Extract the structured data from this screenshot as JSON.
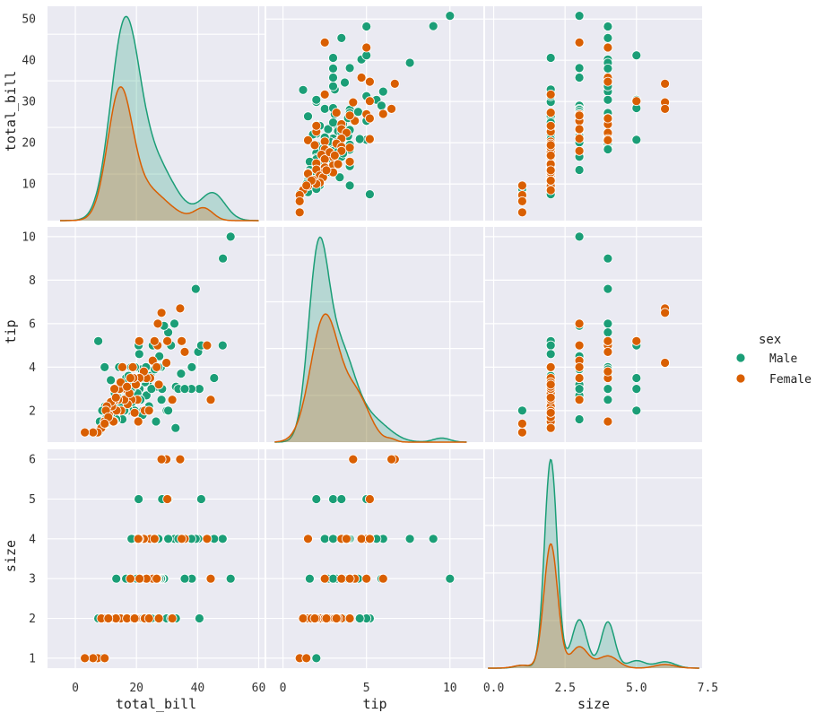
{
  "chart_data": {
    "type": "pairplot",
    "title": "",
    "variables": [
      "total_bill",
      "tip",
      "size"
    ],
    "legend": {
      "title": "sex",
      "placement": "right",
      "entries": [
        {
          "name": "Male",
          "color": "#1b9e77"
        },
        {
          "name": "Female",
          "color": "#d95f02"
        }
      ]
    },
    "axes": {
      "total_bill": {
        "range": [
          -9.1,
          61.9
        ],
        "ticks": [
          0,
          20,
          40,
          60
        ],
        "tick_labels": [
          "0",
          "20",
          "40",
          "60"
        ],
        "label": "total_bill",
        "row_range": [
          1.1,
          53.1
        ],
        "row_ticks": [
          10,
          20,
          30,
          40,
          50
        ],
        "row_tick_labels": [
          "10",
          "20",
          "30",
          "40",
          "50"
        ]
      },
      "tip": {
        "range": [
          -1.0,
          12.0
        ],
        "ticks": [
          0,
          5,
          10
        ],
        "tick_labels": [
          "0",
          "5",
          "10"
        ],
        "label": "tip",
        "row_range": [
          0.55,
          10.45
        ],
        "row_ticks": [
          2,
          4,
          6,
          8,
          10
        ],
        "row_tick_labels": [
          "2",
          "4",
          "6",
          "8",
          "10"
        ]
      },
      "size": {
        "range": [
          -0.3,
          7.3
        ],
        "ticks": [
          0.0,
          2.5,
          5.0,
          7.5
        ],
        "tick_labels": [
          "0.0",
          "2.5",
          "5.0",
          "7.5"
        ],
        "label": "size",
        "row_range": [
          0.75,
          6.25
        ],
        "row_ticks": [
          1,
          2,
          3,
          4,
          5,
          6
        ],
        "row_tick_labels": [
          "1",
          "2",
          "3",
          "4",
          "5",
          "6"
        ]
      }
    },
    "kde": {
      "total_bill": {
        "x_range": [
          -5,
          60
        ],
        "Male": {
          "peak_density": 0.0435,
          "components": [
            {
              "mu": 16.0,
              "sd": 4.6,
              "w": 0.6
            },
            {
              "mu": 25.0,
              "sd": 7.0,
              "w": 0.32
            },
            {
              "mu": 45.0,
              "sd": 4.0,
              "w": 0.08
            }
          ]
        },
        "Female": {
          "peak_density": 0.0285,
          "components": [
            {
              "mu": 14.5,
              "sd": 4.0,
              "w": 0.65
            },
            {
              "mu": 23.0,
              "sd": 7.0,
              "w": 0.3
            },
            {
              "mu": 42.0,
              "sd": 3.0,
              "w": 0.05
            }
          ]
        }
      },
      "tip": {
        "x_range": [
          -0.5,
          11
        ],
        "Male": {
          "peak_density": 0.32,
          "components": [
            {
              "mu": 2.1,
              "sd": 0.6,
              "w": 0.5
            },
            {
              "mu": 3.4,
              "sd": 0.9,
              "w": 0.4
            },
            {
              "mu": 5.4,
              "sd": 1.0,
              "w": 0.1
            },
            {
              "mu": 9.5,
              "sd": 0.5,
              "w": 0.01
            }
          ]
        },
        "Female": {
          "peak_density": 0.2,
          "components": [
            {
              "mu": 2.5,
              "sd": 0.85,
              "w": 0.75
            },
            {
              "mu": 4.4,
              "sd": 0.8,
              "w": 0.25
            },
            {
              "mu": 6.5,
              "sd": 0.3,
              "w": 0.005
            }
          ]
        }
      },
      "size": {
        "x_range": [
          -0.2,
          7.2
        ],
        "Male": {
          "peak_density": 0.94,
          "components": [
            {
              "mu": 2.0,
              "sd": 0.22,
              "w": 0.62
            },
            {
              "mu": 3.0,
              "sd": 0.26,
              "w": 0.17
            },
            {
              "mu": 4.0,
              "sd": 0.24,
              "w": 0.15
            },
            {
              "mu": 5.0,
              "sd": 0.3,
              "w": 0.03
            },
            {
              "mu": 6.0,
              "sd": 0.35,
              "w": 0.03
            },
            {
              "mu": 1.0,
              "sd": 0.25,
              "w": 0.01
            }
          ]
        },
        "Female": {
          "peak_density": 0.56,
          "components": [
            {
              "mu": 2.0,
              "sd": 0.24,
              "w": 0.7
            },
            {
              "mu": 3.0,
              "sd": 0.3,
              "w": 0.15
            },
            {
              "mu": 4.0,
              "sd": 0.35,
              "w": 0.1
            },
            {
              "mu": 6.0,
              "sd": 0.35,
              "w": 0.03
            },
            {
              "mu": 1.0,
              "sd": 0.3,
              "w": 0.02
            }
          ]
        }
      }
    },
    "points": {
      "Male": [
        [
          50.8,
          10.0,
          3
        ],
        [
          48.3,
          9.0,
          4
        ],
        [
          48.2,
          5.0,
          4
        ],
        [
          45.4,
          3.5,
          4
        ],
        [
          44.3,
          2.5,
          3
        ],
        [
          43.1,
          5.0,
          4
        ],
        [
          40.6,
          3.0,
          2
        ],
        [
          40.2,
          4.7,
          4
        ],
        [
          39.4,
          7.6,
          4
        ],
        [
          38.1,
          4.0,
          3
        ],
        [
          38.0,
          3.0,
          4
        ],
        [
          34.8,
          5.2,
          4
        ],
        [
          34.6,
          3.7,
          4
        ],
        [
          34.3,
          6.7,
          6
        ],
        [
          32.4,
          6.0,
          4
        ],
        [
          32.8,
          1.2,
          2
        ],
        [
          32.9,
          3.1,
          2
        ],
        [
          30.4,
          5.6,
          4
        ],
        [
          29.9,
          2.0,
          2
        ],
        [
          29.8,
          4.2,
          6
        ],
        [
          29.0,
          5.9,
          3
        ],
        [
          28.2,
          2.5,
          3
        ],
        [
          28.0,
          4.0,
          3
        ],
        [
          27.2,
          4.0,
          4
        ],
        [
          26.9,
          3.1,
          3
        ],
        [
          26.4,
          1.5,
          2
        ],
        [
          25.9,
          5.2,
          4
        ],
        [
          25.6,
          4.3,
          3
        ],
        [
          25.3,
          5.0,
          2
        ],
        [
          24.6,
          3.6,
          4
        ],
        [
          24.3,
          2.0,
          2
        ],
        [
          24.1,
          2.2,
          2
        ],
        [
          23.7,
          3.3,
          2
        ],
        [
          23.3,
          2.7,
          3
        ],
        [
          22.8,
          3.3,
          2
        ],
        [
          22.5,
          3.5,
          2
        ],
        [
          22.2,
          2.0,
          2
        ],
        [
          21.6,
          3.9,
          3
        ],
        [
          21.0,
          3.0,
          3
        ],
        [
          20.7,
          5.0,
          2
        ],
        [
          20.6,
          3.4,
          2
        ],
        [
          20.3,
          2.8,
          2
        ],
        [
          20.1,
          3.2,
          3
        ],
        [
          19.8,
          3.2,
          2
        ],
        [
          19.5,
          4.0,
          4
        ],
        [
          19.4,
          2.0,
          2
        ],
        [
          18.7,
          4.0,
          4
        ],
        [
          18.4,
          3.0,
          4
        ],
        [
          18.3,
          4.0,
          2
        ],
        [
          18.0,
          3.0,
          2
        ],
        [
          17.8,
          3.3,
          2
        ],
        [
          17.5,
          2.0,
          2
        ],
        [
          17.3,
          2.7,
          2
        ],
        [
          17.0,
          3.5,
          3
        ],
        [
          16.6,
          3.5,
          3
        ],
        [
          16.3,
          2.0,
          2
        ],
        [
          16.0,
          2.0,
          2
        ],
        [
          15.7,
          3.0,
          2
        ],
        [
          15.4,
          1.6,
          2
        ],
        [
          15.0,
          2.2,
          2
        ],
        [
          14.8,
          3.2,
          2
        ],
        [
          14.5,
          2.0,
          2
        ],
        [
          14.3,
          4.0,
          2
        ],
        [
          14.0,
          3.0,
          2
        ],
        [
          13.8,
          2.0,
          2
        ],
        [
          13.4,
          1.6,
          3
        ],
        [
          13.0,
          2.0,
          2
        ],
        [
          12.7,
          1.5,
          2
        ],
        [
          12.5,
          2.2,
          2
        ],
        [
          12.0,
          1.9,
          2
        ],
        [
          11.6,
          3.4,
          2
        ],
        [
          11.2,
          2.0,
          2
        ],
        [
          10.8,
          1.5,
          2
        ],
        [
          10.3,
          1.7,
          2
        ],
        [
          10.0,
          1.4,
          2
        ],
        [
          9.6,
          4.0,
          2
        ],
        [
          9.0,
          2.0,
          2
        ],
        [
          8.5,
          1.3,
          2
        ],
        [
          8.0,
          1.5,
          2
        ],
        [
          7.6,
          1.0,
          1
        ],
        [
          7.5,
          5.2,
          2
        ],
        [
          12.2,
          1.5,
          2
        ],
        [
          22.0,
          1.8,
          2
        ],
        [
          15.5,
          3.0,
          2
        ],
        [
          27.5,
          4.5,
          3
        ],
        [
          21.3,
          2.5,
          4
        ],
        [
          13.9,
          2.6,
          2
        ],
        [
          24.9,
          3.0,
          2
        ],
        [
          16.8,
          2.4,
          2
        ],
        [
          12.9,
          2.8,
          2
        ],
        [
          31.3,
          5.0,
          2
        ],
        [
          33.7,
          3.0,
          4
        ],
        [
          26.0,
          3.9,
          4
        ],
        [
          20.9,
          4.6,
          2
        ],
        [
          35.8,
          3.0,
          3
        ],
        [
          41.2,
          5.0,
          5
        ],
        [
          30.4,
          2.0,
          5
        ],
        [
          28.4,
          3.0,
          5
        ],
        [
          20.7,
          3.5,
          5
        ],
        [
          9.7,
          2.2,
          2
        ],
        [
          8.8,
          2.0,
          1
        ],
        [
          18.6,
          2.4,
          2
        ],
        [
          23.1,
          4.0,
          3
        ],
        [
          17.4,
          3.6,
          2
        ]
      ],
      "Female": [
        [
          44.3,
          2.5,
          3
        ],
        [
          43.1,
          5.0,
          4
        ],
        [
          35.8,
          4.7,
          4
        ],
        [
          34.8,
          5.2,
          4
        ],
        [
          34.3,
          6.7,
          6
        ],
        [
          30.1,
          5.2,
          5
        ],
        [
          29.8,
          4.2,
          6
        ],
        [
          28.2,
          6.5,
          6
        ],
        [
          27.0,
          6.0,
          3
        ],
        [
          26.9,
          5.0,
          3
        ],
        [
          25.3,
          4.3,
          3
        ],
        [
          24.5,
          3.5,
          4
        ],
        [
          23.3,
          3.5,
          3
        ],
        [
          22.4,
          3.8,
          4
        ],
        [
          21.0,
          3.5,
          3
        ],
        [
          20.9,
          5.2,
          4
        ],
        [
          20.3,
          2.5,
          2
        ],
        [
          19.8,
          3.2,
          2
        ],
        [
          19.0,
          3.5,
          2
        ],
        [
          18.4,
          2.5,
          2
        ],
        [
          18.0,
          3.5,
          3
        ],
        [
          17.1,
          2.3,
          2
        ],
        [
          16.5,
          3.0,
          2
        ],
        [
          16.0,
          2.5,
          2
        ],
        [
          15.4,
          4.0,
          2
        ],
        [
          15.0,
          2.0,
          2
        ],
        [
          14.5,
          3.0,
          2
        ],
        [
          14.0,
          2.5,
          2
        ],
        [
          13.5,
          2.0,
          2
        ],
        [
          13.0,
          2.5,
          2
        ],
        [
          12.5,
          1.5,
          2
        ],
        [
          12.0,
          2.2,
          2
        ],
        [
          11.6,
          2.4,
          2
        ],
        [
          11.0,
          1.8,
          2
        ],
        [
          10.3,
          2.2,
          2
        ],
        [
          10.0,
          2.0,
          2
        ],
        [
          9.5,
          1.5,
          2
        ],
        [
          8.5,
          1.2,
          2
        ],
        [
          7.3,
          1.0,
          1
        ],
        [
          5.8,
          1.0,
          1
        ],
        [
          3.1,
          1.0,
          1
        ],
        [
          25.9,
          5.2,
          4
        ],
        [
          31.7,
          2.5,
          2
        ],
        [
          26.6,
          4.0,
          3
        ],
        [
          20.6,
          1.5,
          4
        ],
        [
          17.7,
          2.8,
          2
        ],
        [
          12.8,
          3.0,
          2
        ],
        [
          14.8,
          3.3,
          2
        ],
        [
          22.7,
          2.0,
          2
        ],
        [
          18.8,
          4.0,
          2
        ],
        [
          24.1,
          2.0,
          2
        ],
        [
          16.9,
          3.1,
          2
        ],
        [
          13.3,
          2.6,
          2
        ],
        [
          10.8,
          1.7,
          2
        ],
        [
          19.4,
          1.9,
          2
        ],
        [
          27.3,
          3.2,
          2
        ],
        [
          9.6,
          1.4,
          1
        ]
      ]
    }
  }
}
